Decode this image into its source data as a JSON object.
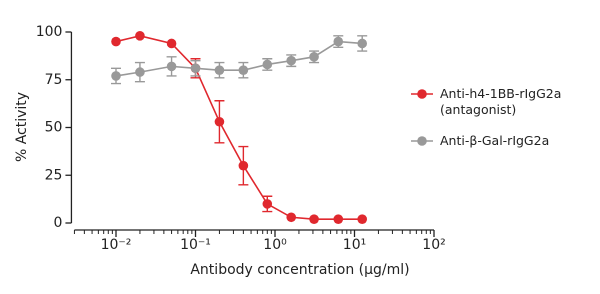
{
  "chart_data": {
    "type": "line",
    "x_label": "Antibody concentration (μg/ml)",
    "y_label": "% Activity",
    "x": [
      0.01,
      0.02,
      0.05,
      0.1,
      0.2,
      0.4,
      0.8,
      1.6,
      3.1,
      6.25,
      12.5
    ],
    "series": [
      {
        "name": "Anti-h4-1BB-rIgG2a (antagonist)",
        "color": "#e0282e",
        "values": [
          95,
          98,
          94,
          81,
          53,
          30,
          10,
          3,
          2,
          2,
          2
        ],
        "errors": [
          0,
          0,
          0,
          5,
          11,
          10,
          4,
          0,
          0,
          0,
          0
        ]
      },
      {
        "name": "Anti-β-Gal-rIgG2a",
        "color": "#999999",
        "values": [
          77,
          79,
          82,
          81,
          80,
          80,
          83,
          85,
          87,
          95,
          94
        ],
        "errors": [
          4,
          5,
          5,
          4,
          4,
          4,
          3,
          3,
          3,
          3,
          4
        ]
      }
    ],
    "x_log": true,
    "xlim": [
      0.003,
      100
    ],
    "xticks": [
      {
        "value": 0.01,
        "label": "10⁻²"
      },
      {
        "value": 0.1,
        "label": "10⁻¹"
      },
      {
        "value": 1,
        "label": "10⁰"
      },
      {
        "value": 10,
        "label": "10¹"
      },
      {
        "value": 100,
        "label": "10²"
      }
    ],
    "ylim": [
      0,
      100
    ],
    "yticks": [
      0,
      25,
      50,
      75,
      100
    ],
    "legend": "right"
  }
}
